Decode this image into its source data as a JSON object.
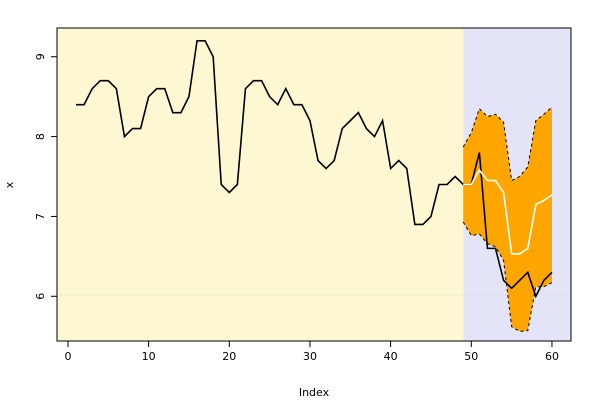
{
  "chart_data": {
    "type": "line",
    "xlabel": "Index",
    "ylabel": "x",
    "xlim": [
      -1.36,
      62.36
    ],
    "ylim": [
      5.44,
      9.36
    ],
    "xticks": [
      0,
      10,
      20,
      30,
      40,
      50,
      60
    ],
    "yticks": [
      6,
      7,
      8,
      9
    ],
    "background": [
      {
        "from": -1.36,
        "to": 49,
        "color": "#fdf8d2"
      },
      {
        "from": 49,
        "to": 62.36,
        "color": "#e4e4f8"
      }
    ],
    "hline": {
      "value": 6.02,
      "color": "#cccccc"
    },
    "band": {
      "color": "#ffa500",
      "x": [
        49,
        50,
        51,
        52,
        53,
        54,
        55,
        56,
        57,
        58,
        59,
        60
      ],
      "upper": [
        7.87,
        8.05,
        8.35,
        8.25,
        8.28,
        8.18,
        7.45,
        7.5,
        7.62,
        8.2,
        8.28,
        8.37
      ],
      "lower": [
        6.93,
        6.76,
        6.78,
        6.66,
        6.62,
        6.45,
        5.62,
        5.56,
        5.57,
        6.12,
        6.12,
        6.17
      ]
    },
    "series": [
      {
        "color": "#000000",
        "x": [
          1,
          2,
          3,
          4,
          5,
          6,
          7,
          8,
          9,
          10,
          11,
          12,
          13,
          14,
          15,
          16,
          17,
          18,
          19,
          20,
          21,
          22,
          23,
          24,
          25,
          26,
          27,
          28,
          29,
          30,
          31,
          32,
          33,
          34,
          35,
          36,
          37,
          38,
          39,
          40,
          41,
          42,
          43,
          44,
          45,
          46,
          47,
          48,
          49,
          50,
          51,
          52,
          53,
          54,
          55,
          56,
          57,
          58,
          59,
          60
        ],
        "values": [
          8.4,
          8.4,
          8.6,
          8.7,
          8.7,
          8.6,
          8.0,
          8.1,
          8.1,
          8.5,
          8.6,
          8.6,
          8.3,
          8.3,
          8.5,
          9.2,
          9.2,
          9.0,
          7.4,
          7.3,
          7.4,
          8.6,
          8.7,
          8.7,
          8.5,
          8.4,
          8.6,
          8.4,
          8.4,
          8.2,
          7.7,
          7.6,
          7.7,
          8.1,
          8.2,
          8.3,
          8.1,
          8.0,
          8.2,
          7.6,
          7.7,
          7.6,
          6.9,
          6.9,
          7.0,
          7.4,
          7.4,
          7.5,
          7.4,
          7.4,
          7.8,
          6.6,
          6.6,
          6.2,
          6.1,
          6.2,
          6.3,
          6.0,
          6.2,
          6.3
        ]
      },
      {
        "color": "#ffffff",
        "x": [
          49,
          50,
          51,
          52,
          53,
          54,
          55,
          56,
          57,
          58,
          59,
          60
        ],
        "values": [
          7.4,
          7.4,
          7.58,
          7.45,
          7.45,
          7.3,
          6.53,
          6.53,
          6.6,
          7.15,
          7.2,
          7.27
        ]
      }
    ]
  }
}
